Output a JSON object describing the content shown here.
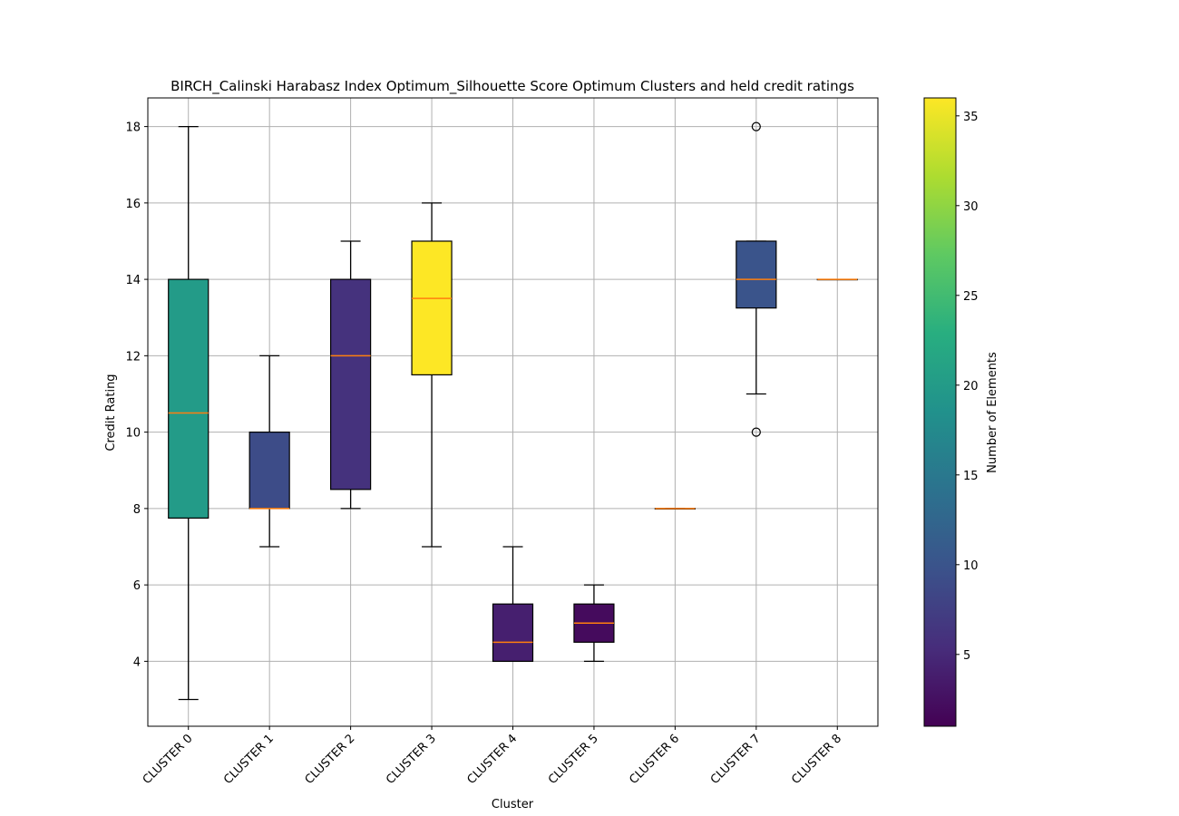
{
  "chart_data": {
    "type": "box",
    "title": "BIRCH_Calinski Harabasz Index Optimum_Silhouette Score Optimum Clusters and held credit ratings",
    "xlabel": "Cluster",
    "ylabel": "Credit Rating",
    "ylim": [
      2.3,
      18.75
    ],
    "yticks": [
      4,
      6,
      8,
      10,
      12,
      14,
      16,
      18
    ],
    "grid": true,
    "categories": [
      "CLUSTER 0",
      "CLUSTER 1",
      "CLUSTER 2",
      "CLUSTER 3",
      "CLUSTER 4",
      "CLUSTER 5",
      "CLUSTER 6",
      "CLUSTER 7",
      "CLUSTER 8"
    ],
    "boxes": [
      {
        "whisker_low": 3,
        "q1": 7.75,
        "median": 10.5,
        "q3": 14,
        "whisker_high": 18,
        "outliers": [],
        "count": 20
      },
      {
        "whisker_low": 7,
        "q1": 8,
        "median": 8,
        "q3": 10,
        "whisker_high": 12,
        "outliers": [],
        "count": 9
      },
      {
        "whisker_low": 8,
        "q1": 8.5,
        "median": 12,
        "q3": 14,
        "whisker_high": 15,
        "outliers": [],
        "count": 6
      },
      {
        "whisker_low": 7,
        "q1": 11.5,
        "median": 13.5,
        "q3": 15,
        "whisker_high": 16,
        "outliers": [],
        "count": 36
      },
      {
        "whisker_low": 4,
        "q1": 4,
        "median": 4.5,
        "q3": 5.5,
        "whisker_high": 7,
        "outliers": [],
        "count": 4
      },
      {
        "whisker_low": 4,
        "q1": 4.5,
        "median": 5,
        "q3": 5.5,
        "whisker_high": 6,
        "outliers": [],
        "count": 2
      },
      {
        "whisker_low": 8,
        "q1": 8,
        "median": 8,
        "q3": 8,
        "whisker_high": 8,
        "outliers": [],
        "count": 1
      },
      {
        "whisker_low": 11,
        "q1": 13.25,
        "median": 14,
        "q3": 15,
        "whisker_high": 15,
        "outliers": [
          10,
          18
        ],
        "count": 10
      },
      {
        "whisker_low": 14,
        "q1": 14,
        "median": 14,
        "q3": 14,
        "whisker_high": 14,
        "outliers": [],
        "count": 1
      }
    ],
    "colorbar": {
      "label": "Number of Elements",
      "colormap": "viridis",
      "range": [
        1,
        36
      ],
      "ticks": [
        5,
        10,
        15,
        20,
        25,
        30,
        35
      ]
    },
    "colors": {
      "median": "#ff7f0e",
      "grid": "#b0b0b0",
      "edge": "#000000"
    }
  }
}
